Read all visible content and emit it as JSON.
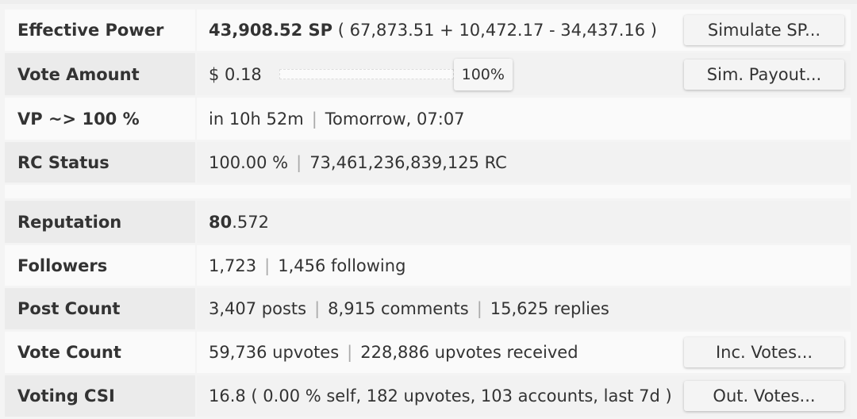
{
  "rows": {
    "effective_power": {
      "label": "Effective Power",
      "bold": "43,908.52 SP",
      "rest": " ( 67,873.51 + 10,472.17 - 34,437.16 )",
      "button": "Simulate SP..."
    },
    "vote_amount": {
      "label": "Vote Amount",
      "value": "$ 0.18",
      "slider_percent": 100,
      "percent_label": "100%",
      "button": "Sim. Payout..."
    },
    "vp": {
      "label": "VP ~> 100 %",
      "a": "in 10h 52m",
      "b": "Tomorrow, 07:07"
    },
    "rc": {
      "label": "RC Status",
      "a": "100.00 %",
      "b": "73,461,236,839,125 RC"
    },
    "reputation": {
      "label": "Reputation",
      "bold": "80",
      "rest": ".572"
    },
    "followers": {
      "label": "Followers",
      "a": "1,723",
      "b": "1,456 following"
    },
    "posts": {
      "label": "Post Count",
      "a": "3,407 posts",
      "b": "8,915 comments",
      "c": "15,625 replies"
    },
    "votes": {
      "label": "Vote Count",
      "a": "59,736 upvotes",
      "b": "228,886 upvotes received",
      "button": "Inc. Votes..."
    },
    "csi": {
      "label": "Voting CSI",
      "value": "16.8 ( 0.00 % self, 182 upvotes, 103 accounts, last 7d )",
      "button": "Out. Votes..."
    }
  },
  "separator": "|"
}
